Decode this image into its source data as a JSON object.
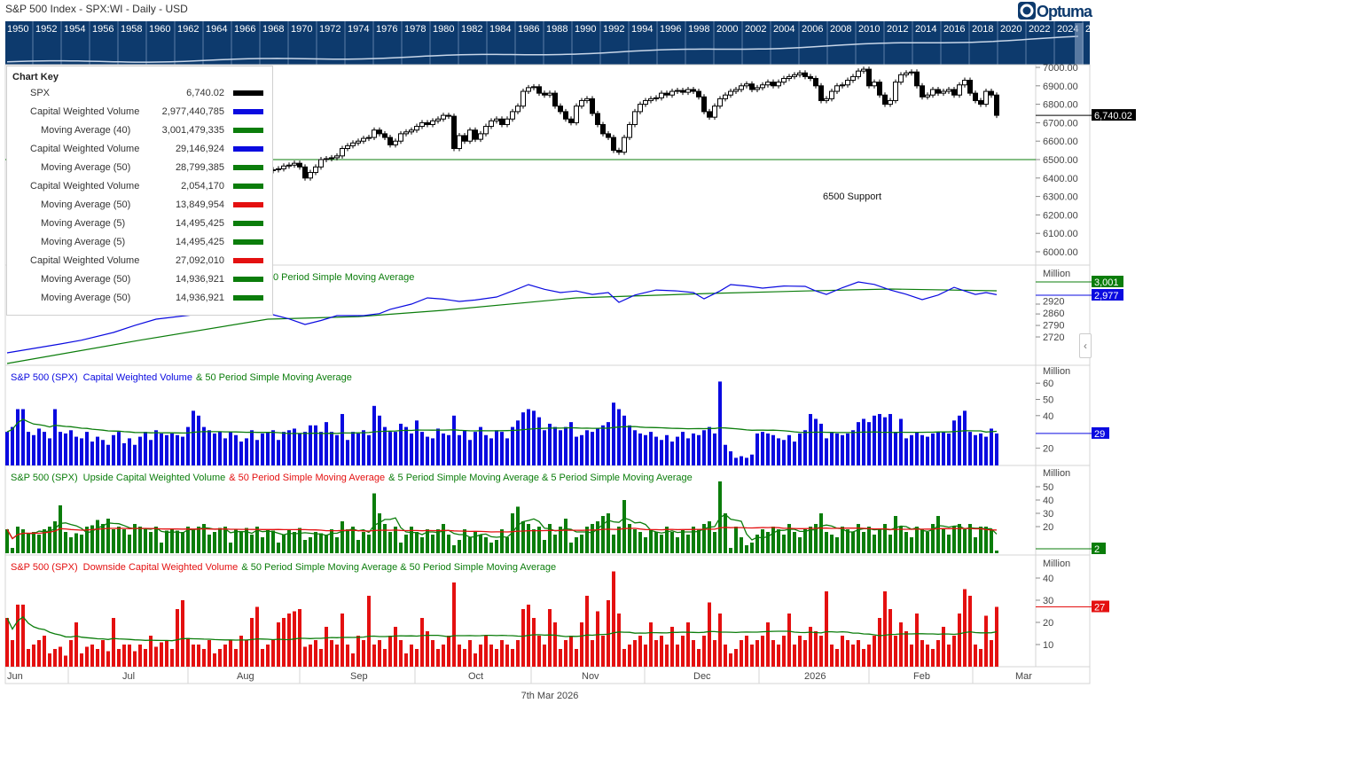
{
  "header": {
    "title": "S&P 500 Index - SPX:WI - Daily - USD",
    "logo": "Optuma"
  },
  "timeline": {
    "years": [
      "1950",
      "1952",
      "1954",
      "1956",
      "1958",
      "1960",
      "1962",
      "1964",
      "1966",
      "1968",
      "1970",
      "1972",
      "1974",
      "1976",
      "1978",
      "1980",
      "1982",
      "1984",
      "1986",
      "1988",
      "1990",
      "1992",
      "1994",
      "1996",
      "1998",
      "2000",
      "2002",
      "2004",
      "2006",
      "2008",
      "2010",
      "2012",
      "2014",
      "2016",
      "2018",
      "2020",
      "2022",
      "2024",
      "2"
    ]
  },
  "colors": {
    "band": "#0d3a6d",
    "blue": "#0a0ae0",
    "green": "#0b7d0b",
    "red": "#e41010",
    "candle": "#000000"
  },
  "chart_key": {
    "title": "Chart Key",
    "rows": [
      {
        "label": "SPX",
        "value": "6,740.02",
        "color": "#000000",
        "indent": false
      },
      {
        "label": "Capital Weighted Volume",
        "value": "2,977,440,785",
        "color": "#0a0ae0",
        "indent": false
      },
      {
        "label": "Moving Average (40)",
        "value": "3,001,479,335",
        "color": "#0b7d0b",
        "indent": true
      },
      {
        "label": "Capital Weighted Volume",
        "value": "29,146,924",
        "color": "#0a0ae0",
        "indent": false
      },
      {
        "label": "Moving Average (50)",
        "value": "28,799,385",
        "color": "#0b7d0b",
        "indent": true
      },
      {
        "label": "Capital Weighted Volume",
        "value": "2,054,170",
        "color": "#0b7d0b",
        "indent": false
      },
      {
        "label": "Moving Average (50)",
        "value": "13,849,954",
        "color": "#e41010",
        "indent": true
      },
      {
        "label": "Moving Average (5)",
        "value": "14,495,425",
        "color": "#0b7d0b",
        "indent": true
      },
      {
        "label": "Moving Average (5)",
        "value": "14,495,425",
        "color": "#0b7d0b",
        "indent": true
      },
      {
        "label": "Capital Weighted Volume",
        "value": "27,092,010",
        "color": "#e41010",
        "indent": false
      },
      {
        "label": "Moving Average (50)",
        "value": "14,936,921",
        "color": "#0b7d0b",
        "indent": true
      },
      {
        "label": "Moving Average (50)",
        "value": "14,936,921",
        "color": "#0b7d0b",
        "indent": true
      }
    ]
  },
  "x_axis": {
    "labels": [
      "Jun",
      "Jul",
      "Aug",
      "Sep",
      "Oct",
      "Nov",
      "Dec",
      "2026",
      "Feb",
      "Mar"
    ],
    "footer": "7th Mar 2026"
  },
  "chart_data": [
    {
      "type": "candlestick",
      "name": "SPX",
      "ylim": [
        6000,
        7000
      ],
      "yticks": [
        "7000.00",
        "6900.00",
        "6800.00",
        "6700.00",
        "6600.00",
        "6500.00",
        "6400.00",
        "6300.00",
        "6200.00",
        "6100.00",
        "6000.00"
      ],
      "last_label": "6,740.02",
      "support": {
        "value": 6500,
        "label": "6500 Support"
      },
      "close": [
        5912,
        5935,
        5970,
        5960,
        5986,
        6000,
        5985,
        6025,
        6040,
        6060,
        6030,
        6090,
        6110,
        6140,
        6170,
        6200,
        6180,
        6205,
        6230,
        6260,
        6280,
        6250,
        6295,
        6300,
        6270,
        6310,
        6330,
        6360,
        6340,
        6390,
        6370,
        6305,
        6340,
        6380,
        6400,
        6420,
        6390,
        6440,
        6460,
        6445,
        6350,
        6300,
        6330,
        6395,
        6410,
        6380,
        6420,
        6450,
        6410,
        6440,
        6445,
        6450,
        6465,
        6470,
        6480,
        6460,
        6400,
        6430,
        6460,
        6500,
        6505,
        6510,
        6520,
        6560,
        6575,
        6590,
        6600,
        6615,
        6620,
        6660,
        6640,
        6620,
        6580,
        6600,
        6640,
        6650,
        6660,
        6680,
        6700,
        6690,
        6710,
        6720,
        6740,
        6735,
        6560,
        6630,
        6600,
        6660,
        6610,
        6640,
        6680,
        6710,
        6720,
        6690,
        6720,
        6760,
        6790,
        6870,
        6890,
        6895,
        6860,
        6850,
        6860,
        6790,
        6760,
        6720,
        6700,
        6790,
        6820,
        6830,
        6750,
        6690,
        6640,
        6620,
        6550,
        6540,
        6620,
        6690,
        6760,
        6800,
        6820,
        6830,
        6835,
        6860,
        6850,
        6870,
        6875,
        6865,
        6880,
        6870,
        6840,
        6760,
        6730,
        6790,
        6830,
        6850,
        6870,
        6880,
        6900,
        6910,
        6880,
        6890,
        6905,
        6920,
        6900,
        6920,
        6940,
        6950,
        6960,
        6970,
        6950,
        6940,
        6900,
        6820,
        6830,
        6870,
        6900,
        6905,
        6930,
        6950,
        6980,
        6990,
        6900,
        6920,
        6850,
        6800,
        6820,
        6920,
        6960,
        6970,
        6975,
        6900,
        6840,
        6850,
        6880,
        6860,
        6870,
        6880,
        6850,
        6905,
        6930,
        6860,
        6820,
        6800,
        6870,
        6850,
        6740.02
      ]
    },
    {
      "type": "line",
      "title_visible": "0 Period Simple Moving Average",
      "yticks": [
        "2920",
        "2860",
        "2790",
        "2720"
      ],
      "unit": "Million",
      "tags": {
        "ma": "3,001",
        "cwv": "2,977"
      },
      "series": [
        {
          "points": [
            [
              0,
              2623
            ],
            [
              5,
              2650
            ],
            [
              10,
              2677
            ],
            [
              14,
              2700
            ],
            [
              20,
              2747
            ],
            [
              24,
              2790
            ],
            [
              28,
              2828
            ],
            [
              35,
              2855
            ],
            [
              42,
              2860
            ],
            [
              50,
              2855
            ],
            [
              53,
              2830
            ],
            [
              56,
              2796
            ],
            [
              59,
              2820
            ],
            [
              62,
              2850
            ],
            [
              67,
              2850
            ],
            [
              70,
              2862
            ],
            [
              72,
              2888
            ],
            [
              76,
              2920
            ],
            [
              79,
              2958
            ],
            [
              82,
              2950
            ],
            [
              85,
              2936
            ],
            [
              88,
              2945
            ],
            [
              92,
              2963
            ],
            [
              95,
              3000
            ],
            [
              98,
              3039
            ],
            [
              101,
              3010
            ],
            [
              104,
              2990
            ],
            [
              107,
              3000
            ],
            [
              110,
              2979
            ],
            [
              113,
              2990
            ],
            [
              115,
              2931
            ],
            [
              118,
              2975
            ],
            [
              122,
              3006
            ],
            [
              126,
              3000
            ],
            [
              129,
              2990
            ],
            [
              131,
              2952
            ],
            [
              134,
              3000
            ],
            [
              136,
              3039
            ],
            [
              139,
              3030
            ],
            [
              142,
              3017
            ],
            [
              146,
              3030
            ],
            [
              150,
              3028
            ],
            [
              152,
              3000
            ],
            [
              154,
              2979
            ],
            [
              157,
              3020
            ],
            [
              160,
              3055
            ],
            [
              163,
              3040
            ],
            [
              166,
              3006
            ],
            [
              169,
              2980
            ],
            [
              172,
              2947
            ],
            [
              175,
              2975
            ],
            [
              178,
              3022
            ],
            [
              180,
              3000
            ],
            [
              182,
              2979
            ],
            [
              184,
              2990
            ],
            [
              186,
              2977
            ]
          ]
        },
        {
          "points": [
            [
              0,
              2558
            ],
            [
              25,
              2700
            ],
            [
              49,
              2828
            ],
            [
              66,
              2844
            ],
            [
              82,
              2882
            ],
            [
              107,
              2958
            ],
            [
              132,
              2985
            ],
            [
              150,
              3000
            ],
            [
              166,
              3012
            ],
            [
              186,
              3001
            ]
          ]
        }
      ]
    },
    {
      "type": "bar",
      "title": [
        "S&P 500 (SPX)",
        "Capital Weighted Volume",
        "& 50 Period Simple Moving Average"
      ],
      "unit": "Million",
      "yticks": [
        "60",
        "50",
        "40",
        "20"
      ],
      "last_label": "29",
      "ma_period": 50,
      "values": [
        30,
        33,
        44,
        44,
        30,
        28,
        32,
        30,
        26,
        44,
        30,
        29,
        31,
        27,
        26,
        30,
        24,
        27,
        25,
        22,
        28,
        30,
        23,
        26,
        22,
        27,
        30,
        25,
        31,
        29,
        28,
        29,
        28,
        27,
        33,
        43,
        40,
        33,
        31,
        29,
        30,
        26,
        30,
        28,
        24,
        26,
        31,
        25,
        29,
        30,
        31,
        25,
        30,
        31,
        32,
        29,
        30,
        34,
        34,
        30,
        36,
        30,
        28,
        41,
        25,
        30,
        29,
        31,
        28,
        46,
        40,
        33,
        30,
        30,
        35,
        33,
        29,
        37,
        30,
        27,
        26,
        32,
        29,
        28,
        40,
        28,
        31,
        25,
        30,
        33,
        28,
        26,
        31,
        30,
        26,
        33,
        37,
        42,
        44,
        43,
        39,
        31,
        35,
        33,
        31,
        33,
        36,
        27,
        28,
        31,
        30,
        32,
        34,
        36,
        48,
        44,
        40,
        34,
        31,
        29,
        28,
        30,
        27,
        25,
        28,
        24,
        27,
        30,
        26,
        29,
        28,
        31,
        33,
        29,
        61,
        22,
        18,
        14,
        15,
        14,
        16,
        29,
        30,
        29,
        28,
        26,
        25,
        28,
        24,
        29,
        31,
        41,
        38,
        35,
        26,
        30,
        29,
        28,
        29,
        31,
        36,
        38,
        36,
        40,
        41,
        39,
        41,
        30,
        38,
        26,
        28,
        30,
        28,
        27,
        29,
        30,
        30,
        29,
        37,
        40,
        43,
        30,
        28,
        29,
        27,
        32,
        29
      ]
    },
    {
      "type": "bar",
      "title": [
        "S&P 500 (SPX)",
        "Upside Capital Weighted Volume",
        "& 50 Period Simple Moving Average",
        "& 5 Period Simple Moving Average & 5 Period Simple Moving Average"
      ],
      "unit": "Million",
      "yticks": [
        "50",
        "40",
        "30",
        "20"
      ],
      "last_label": "2",
      "ma_periods": [
        50,
        5
      ],
      "values": [
        18,
        4,
        20,
        18,
        15,
        16,
        14,
        18,
        20,
        24,
        36,
        16,
        12,
        15,
        14,
        20,
        21,
        25,
        22,
        26,
        18,
        20,
        18,
        14,
        22,
        20,
        18,
        16,
        20,
        8,
        17,
        18,
        17,
        16,
        20,
        18,
        20,
        22,
        14,
        16,
        19,
        20,
        8,
        18,
        16,
        19,
        14,
        20,
        12,
        18,
        17,
        8,
        14,
        18,
        16,
        19,
        10,
        12,
        16,
        15,
        14,
        18,
        12,
        24,
        18,
        20,
        10,
        16,
        14,
        45,
        30,
        22,
        16,
        20,
        8,
        14,
        20,
        16,
        12,
        18,
        14,
        18,
        22,
        14,
        6,
        10,
        18,
        12,
        16,
        14,
        12,
        8,
        10,
        18,
        12,
        30,
        35,
        24,
        22,
        18,
        20,
        10,
        22,
        14,
        20,
        26,
        8,
        12,
        14,
        20,
        22,
        24,
        28,
        30,
        14,
        20,
        40,
        22,
        18,
        16,
        12,
        18,
        16,
        14,
        20,
        16,
        12,
        18,
        14,
        20,
        18,
        22,
        24,
        16,
        54,
        30,
        4,
        20,
        12,
        6,
        8,
        14,
        18,
        16,
        20,
        18,
        14,
        22,
        16,
        12,
        18,
        20,
        22,
        30,
        16,
        14,
        12,
        20,
        18,
        16,
        22,
        16,
        20,
        14,
        18,
        22,
        14,
        28,
        20,
        16,
        12,
        20,
        18,
        16,
        22,
        28,
        18,
        14,
        20,
        22,
        18,
        22,
        12,
        20,
        20,
        18,
        2
      ]
    },
    {
      "type": "bar",
      "title": [
        "S&P 500 (SPX)",
        "Downside Capital Weighted Volume",
        "& 50 Period Simple Moving Average & 50 Period Simple Moving Average"
      ],
      "unit": "Million",
      "yticks": [
        "40",
        "30",
        "20",
        "10"
      ],
      "last_label": "27",
      "ma_period": 50,
      "values": [
        22,
        12,
        28,
        28,
        8,
        10,
        12,
        14,
        6,
        8,
        9,
        5,
        12,
        20,
        6,
        9,
        10,
        8,
        12,
        7,
        22,
        8,
        10,
        10,
        7,
        10,
        8,
        14,
        9,
        11,
        12,
        8,
        26,
        30,
        13,
        10,
        10,
        8,
        12,
        6,
        8,
        10,
        12,
        8,
        14,
        12,
        22,
        27,
        8,
        10,
        12,
        20,
        22,
        24,
        25,
        26,
        9,
        10,
        12,
        8,
        18,
        12,
        10,
        24,
        10,
        6,
        14,
        12,
        32,
        10,
        12,
        8,
        14,
        18,
        12,
        6,
        10,
        8,
        22,
        16,
        12,
        8,
        10,
        14,
        38,
        10,
        8,
        12,
        6,
        10,
        14,
        10,
        8,
        12,
        10,
        8,
        12,
        26,
        28,
        22,
        14,
        10,
        26,
        20,
        8,
        12,
        14,
        8,
        20,
        32,
        12,
        25,
        14,
        30,
        43,
        24,
        8,
        10,
        12,
        14,
        10,
        20,
        12,
        14,
        10,
        18,
        10,
        14,
        20,
        12,
        8,
        14,
        29,
        12,
        24,
        10,
        6,
        8,
        12,
        14,
        10,
        12,
        14,
        20,
        12,
        10,
        14,
        24,
        10,
        14,
        12,
        18,
        16,
        14,
        34,
        10,
        8,
        14,
        12,
        10,
        12,
        8,
        10,
        14,
        22,
        34,
        26,
        14,
        20,
        16,
        10,
        24,
        12,
        10,
        8,
        12,
        18,
        10,
        14,
        24,
        35,
        32,
        10,
        8,
        23,
        12,
        27
      ]
    }
  ]
}
